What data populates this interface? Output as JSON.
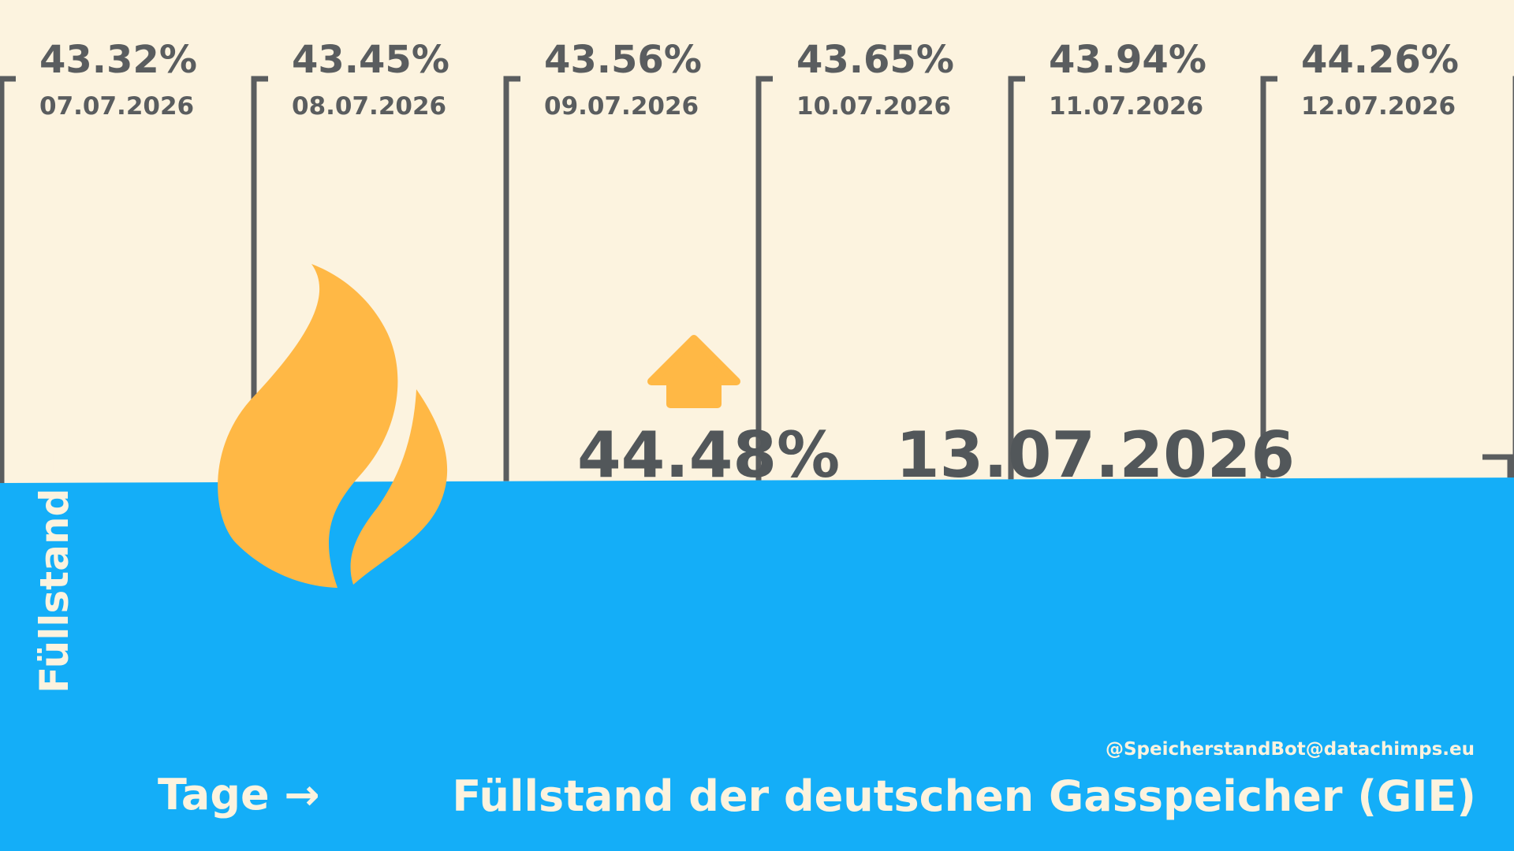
{
  "chart_data": {
    "type": "area",
    "title": "Füllstand der deutschen Gasspeicher (GIE)",
    "xlabel": "Tage →",
    "ylabel": "Füllstand →",
    "x": [
      "07.07.2026",
      "08.07.2026",
      "09.07.2026",
      "10.07.2026",
      "11.07.2026",
      "12.07.2026",
      "13.07.2026"
    ],
    "series": [
      {
        "values": [
          43.32,
          43.45,
          43.56,
          43.65,
          43.94,
          44.26,
          44.48
        ]
      }
    ],
    "value_labels": [
      "43.32%",
      "43.45%",
      "43.56%",
      "43.65%",
      "43.94%",
      "44.26%"
    ],
    "current": {
      "value": "44.48%",
      "date": "13.07.2026",
      "trend": "up"
    },
    "credit": "@SpeicherstandBot@datachimps.eu",
    "grid": false,
    "legend": "none"
  },
  "colors": {
    "background": "#fcf3df",
    "fill": "#14aef8",
    "accent": "#ffb845",
    "text": "#5a5d5f"
  },
  "icons": [
    "flame-icon",
    "arrow-up-icon"
  ]
}
